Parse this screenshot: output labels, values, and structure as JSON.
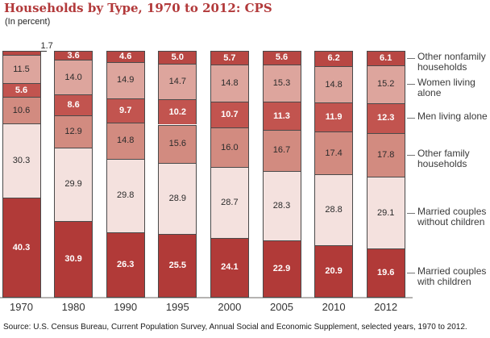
{
  "title": "Households by Type, 1970 to 2012: CPS",
  "subtitle": "(In percent)",
  "source": "Source: U.S. Census Bureau, Current Population Survey, Annual Social and Economic Supplement, selected years, 1970 to 2012.",
  "colors": {
    "title_red": "#b2393a",
    "segment_border": "#4a4a4a",
    "axis_line": "#b5b3b1",
    "label_on_dark": "#ffffff",
    "label_on_light": "#2b2b2b"
  },
  "chart_data": {
    "type": "bar",
    "stacked": true,
    "title": "Households by Type, 1970 to 2012: CPS",
    "subtitle": "(In percent)",
    "xlabel": "",
    "ylabel": "",
    "ylim": [
      0,
      100
    ],
    "grid": false,
    "legend_position": "right",
    "categories": [
      "1970",
      "1980",
      "1990",
      "1995",
      "2000",
      "2005",
      "2010",
      "2012"
    ],
    "series": [
      {
        "name": "Married couples with children",
        "color": "#b13a38",
        "label_style": "light",
        "values": [
          40.3,
          30.9,
          26.3,
          25.5,
          24.1,
          22.9,
          20.9,
          19.6
        ]
      },
      {
        "name": "Married couples without children",
        "color": "#f4e1de",
        "label_style": "dark",
        "values": [
          30.3,
          29.9,
          29.8,
          28.9,
          28.7,
          28.3,
          28.8,
          29.1
        ]
      },
      {
        "name": "Other family households",
        "color": "#d28b80",
        "label_style": "dark",
        "values": [
          10.6,
          12.9,
          14.8,
          15.6,
          16.0,
          16.7,
          17.4,
          17.8
        ]
      },
      {
        "name": "Men living alone",
        "color": "#c2544f",
        "label_style": "light",
        "values": [
          5.6,
          8.6,
          9.7,
          10.2,
          10.7,
          11.3,
          11.9,
          12.3
        ]
      },
      {
        "name": "Women living alone",
        "color": "#dda59d",
        "label_style": "dark",
        "values": [
          11.5,
          14.0,
          14.9,
          14.7,
          14.8,
          15.3,
          14.8,
          15.2
        ]
      },
      {
        "name": "Other nonfamily households",
        "color": "#b84743",
        "label_style": "light",
        "values": [
          1.7,
          3.6,
          4.6,
          5.0,
          5.7,
          5.6,
          6.2,
          6.1
        ]
      }
    ],
    "annotations": [
      {
        "text": "1.7",
        "target": "1970 Other nonfamily households",
        "placement": "outside-top"
      }
    ]
  }
}
